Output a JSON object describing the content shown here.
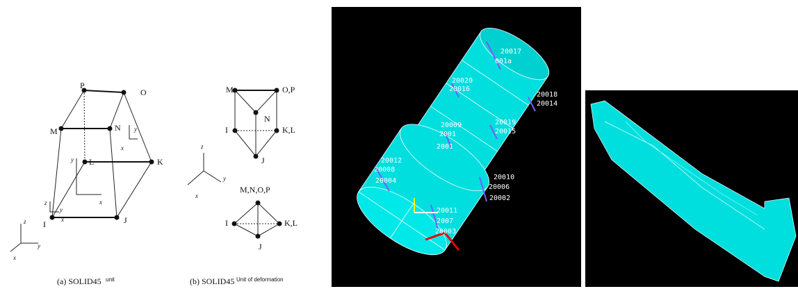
{
  "panel_a": {
    "nodes": [
      "P",
      "O",
      "M",
      "N",
      "L",
      "K",
      "I",
      "J"
    ],
    "axes": [
      "y",
      "x",
      "y",
      "x",
      "z",
      "y",
      "x",
      "z",
      "y",
      "x"
    ],
    "caption": "(a) SOLID45",
    "caption_note": "unit"
  },
  "panel_b": {
    "nodes": [
      "M",
      "O,P",
      "N",
      "I",
      "K,L",
      "J",
      "M,N,O,P",
      "I",
      "K,L",
      "J"
    ],
    "axes": [
      "z",
      "y",
      "x"
    ],
    "caption": "(b) SOLID45",
    "caption_note": "Unit of deformation"
  },
  "model_view": {
    "node_labels": [
      "20017",
      "001a",
      "20020",
      "20016",
      "20018",
      "20014",
      "20009",
      "2001",
      "2001",
      "20019",
      "20015",
      "20012",
      "20008",
      "20004",
      "20010",
      "20006",
      "20002",
      "20011",
      "2007",
      "20003"
    ]
  }
}
